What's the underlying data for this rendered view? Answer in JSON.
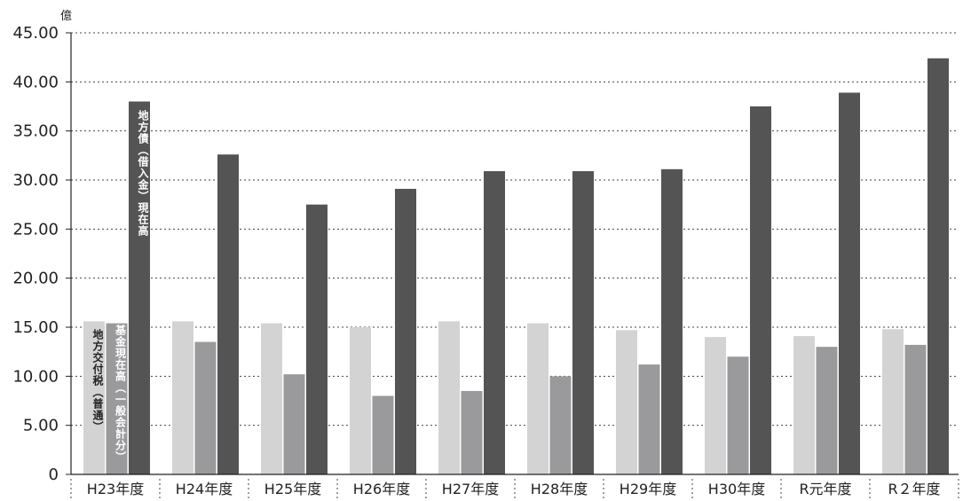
{
  "chart_data": {
    "type": "bar",
    "unit_label": "億",
    "y_tick_labels": [
      "0",
      "5.00",
      "10.00",
      "15.00",
      "20.00",
      "25.00",
      "30.00",
      "35.00",
      "40.00",
      "45.00"
    ],
    "y_ticks": [
      0,
      5,
      10,
      15,
      20,
      25,
      30,
      35,
      40,
      45
    ],
    "ylim": [
      0,
      45
    ],
    "grid": true,
    "categories": [
      "H23年度",
      "H24年度",
      "H25年度",
      "H26年度",
      "H27年度",
      "H28年度",
      "H29年度",
      "H30年度",
      "R元年度",
      "R２年度"
    ],
    "series": [
      {
        "name": "地方交付税（普通）",
        "color": "#d3d3d3",
        "label_color": "#222222",
        "values": [
          15.6,
          15.6,
          15.4,
          15.0,
          15.6,
          15.4,
          14.7,
          14.0,
          14.1,
          14.8
        ]
      },
      {
        "name": "基金現在高（一般会計分）",
        "color": "#9a9a9c",
        "label_color": "#ffffff",
        "values": [
          15.4,
          13.5,
          10.2,
          8.0,
          8.5,
          10.0,
          11.2,
          12.0,
          13.0,
          13.2
        ]
      },
      {
        "name": "地方債（借入金）現在高",
        "color": "#545455",
        "label_color": "#ffffff",
        "values": [
          38.0,
          32.6,
          27.5,
          29.1,
          30.9,
          30.9,
          31.1,
          37.5,
          38.9,
          42.4
        ]
      }
    ]
  }
}
